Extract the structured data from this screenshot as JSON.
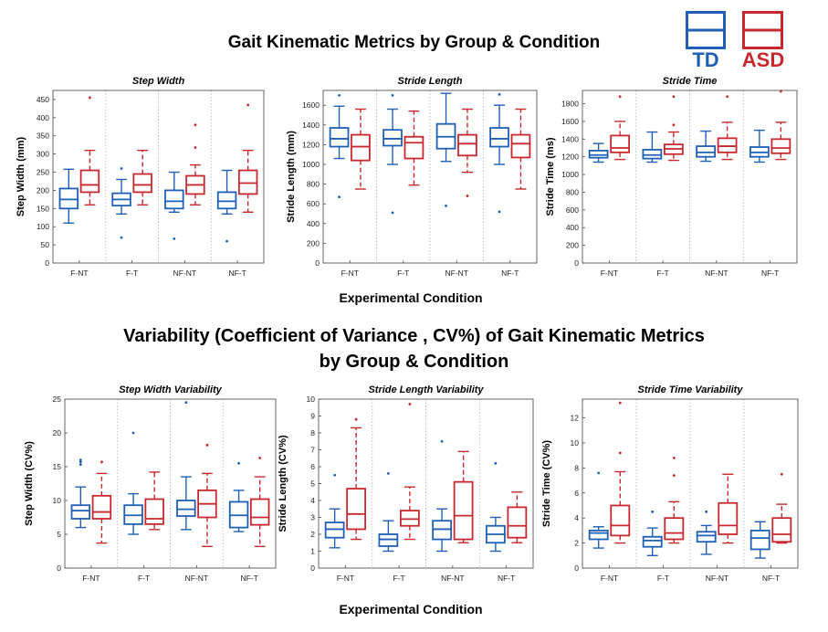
{
  "main_title": "Gait Kinematic Metrics by Group & Condition",
  "var_title_line1": "Variability (Coefficient of Variance , CV%) of Gait Kinematic Metrics",
  "var_title_line2": "by Group & Condition",
  "xlabel_top": "Experimental Condition",
  "xlabel_bottom": "Experimental Condition",
  "legend": [
    {
      "label": "TD",
      "color": "#1f5fb5"
    },
    {
      "label": "ASD",
      "color": "#c8282d"
    }
  ],
  "chart_data": [
    {
      "type": "box",
      "title": "Step Width",
      "ylabel": "Step Width (mm)",
      "categories": [
        "F-NT",
        "F-T",
        "NF-NT",
        "NF-T"
      ],
      "ylim": [
        0,
        475
      ],
      "yticks": [
        0,
        50,
        100,
        150,
        200,
        250,
        300,
        350,
        400,
        450
      ],
      "series": [
        {
          "name": "TD",
          "boxes": [
            {
              "min": 110,
              "q1": 150,
              "median": 175,
              "q3": 205,
              "max": 258,
              "outliers": []
            },
            {
              "min": 135,
              "q1": 158,
              "median": 175,
              "q3": 192,
              "max": 230,
              "outliers": [
                260,
                70
              ]
            },
            {
              "min": 140,
              "q1": 150,
              "median": 170,
              "q3": 200,
              "max": 250,
              "outliers": [
                67
              ]
            },
            {
              "min": 135,
              "q1": 150,
              "median": 170,
              "q3": 195,
              "max": 255,
              "outliers": [
                60
              ]
            }
          ]
        },
        {
          "name": "ASD",
          "boxes": [
            {
              "min": 160,
              "q1": 195,
              "median": 215,
              "q3": 255,
              "max": 310,
              "outliers": [
                455
              ]
            },
            {
              "min": 160,
              "q1": 195,
              "median": 215,
              "q3": 245,
              "max": 310,
              "outliers": []
            },
            {
              "min": 160,
              "q1": 190,
              "median": 215,
              "q3": 240,
              "max": 270,
              "outliers": [
                380,
                318
              ]
            },
            {
              "min": 140,
              "q1": 190,
              "median": 220,
              "q3": 255,
              "max": 310,
              "outliers": [
                435
              ]
            }
          ]
        }
      ]
    },
    {
      "type": "box",
      "title": "Stride Length",
      "ylabel": "Stride Length (mm)",
      "categories": [
        "F-NT",
        "F-T",
        "NF-NT",
        "NF-T"
      ],
      "ylim": [
        0,
        1750
      ],
      "yticks": [
        0,
        200,
        400,
        600,
        800,
        1000,
        1200,
        1400,
        1600
      ],
      "series": [
        {
          "name": "TD",
          "boxes": [
            {
              "min": 1060,
              "q1": 1180,
              "median": 1260,
              "q3": 1370,
              "max": 1590,
              "outliers": [
                1700,
                670
              ]
            },
            {
              "min": 1000,
              "q1": 1190,
              "median": 1260,
              "q3": 1350,
              "max": 1560,
              "outliers": [
                1700,
                510
              ]
            },
            {
              "min": 1030,
              "q1": 1160,
              "median": 1280,
              "q3": 1410,
              "max": 1720,
              "outliers": [
                580
              ]
            },
            {
              "min": 1000,
              "q1": 1180,
              "median": 1260,
              "q3": 1370,
              "max": 1600,
              "outliers": [
                1710,
                520
              ]
            }
          ]
        },
        {
          "name": "ASD",
          "boxes": [
            {
              "min": 750,
              "q1": 1040,
              "median": 1180,
              "q3": 1300,
              "max": 1560,
              "outliers": []
            },
            {
              "min": 790,
              "q1": 1060,
              "median": 1220,
              "q3": 1280,
              "max": 1540,
              "outliers": []
            },
            {
              "min": 920,
              "q1": 1090,
              "median": 1210,
              "q3": 1300,
              "max": 1560,
              "outliers": [
                680
              ]
            },
            {
              "min": 750,
              "q1": 1070,
              "median": 1210,
              "q3": 1300,
              "max": 1560,
              "outliers": []
            }
          ]
        }
      ]
    },
    {
      "type": "box",
      "title": "Stride Time",
      "ylabel": "Stride Time (ms)",
      "categories": [
        "F-NT",
        "F-T",
        "NF-NT",
        "NF-T"
      ],
      "ylim": [
        0,
        1950
      ],
      "yticks": [
        0,
        200,
        400,
        600,
        800,
        1000,
        1200,
        1400,
        1600,
        1800
      ],
      "series": [
        {
          "name": "TD",
          "boxes": [
            {
              "min": 1140,
              "q1": 1190,
              "median": 1220,
              "q3": 1270,
              "max": 1350,
              "outliers": []
            },
            {
              "min": 1140,
              "q1": 1180,
              "median": 1220,
              "q3": 1280,
              "max": 1480,
              "outliers": []
            },
            {
              "min": 1150,
              "q1": 1200,
              "median": 1250,
              "q3": 1320,
              "max": 1490,
              "outliers": []
            },
            {
              "min": 1140,
              "q1": 1200,
              "median": 1250,
              "q3": 1310,
              "max": 1500,
              "outliers": []
            }
          ]
        },
        {
          "name": "ASD",
          "boxes": [
            {
              "min": 1170,
              "q1": 1250,
              "median": 1300,
              "q3": 1440,
              "max": 1600,
              "outliers": [
                1880
              ]
            },
            {
              "min": 1160,
              "q1": 1230,
              "median": 1290,
              "q3": 1340,
              "max": 1480,
              "outliers": [
                1880,
                1560
              ]
            },
            {
              "min": 1170,
              "q1": 1250,
              "median": 1320,
              "q3": 1410,
              "max": 1590,
              "outliers": [
                1880
              ]
            },
            {
              "min": 1170,
              "q1": 1240,
              "median": 1300,
              "q3": 1400,
              "max": 1590,
              "outliers": [
                1940
              ]
            }
          ]
        }
      ]
    },
    {
      "type": "box",
      "title": "Step Width Variability",
      "ylabel": "Step Width (CV%)",
      "categories": [
        "F-NT",
        "F-T",
        "NF-NT",
        "NF-T"
      ],
      "ylim": [
        0,
        25
      ],
      "yticks": [
        0,
        5,
        10,
        15,
        20,
        25
      ],
      "series": [
        {
          "name": "TD",
          "boxes": [
            {
              "min": 6,
              "q1": 7.3,
              "median": 8.5,
              "q3": 9.3,
              "max": 12,
              "outliers": [
                16,
                15.7,
                15.3
              ]
            },
            {
              "min": 5,
              "q1": 6.5,
              "median": 7.8,
              "q3": 9.3,
              "max": 11,
              "outliers": [
                20
              ]
            },
            {
              "min": 5.7,
              "q1": 7.7,
              "median": 8.7,
              "q3": 10,
              "max": 13.5,
              "outliers": [
                24.5
              ]
            },
            {
              "min": 5.4,
              "q1": 6,
              "median": 7.8,
              "q3": 9.8,
              "max": 11.5,
              "outliers": [
                15.5
              ]
            }
          ]
        },
        {
          "name": "ASD",
          "boxes": [
            {
              "min": 3.7,
              "q1": 7.3,
              "median": 8.3,
              "q3": 10.7,
              "max": 14,
              "outliers": [
                15.7
              ]
            },
            {
              "min": 5.7,
              "q1": 6.5,
              "median": 7.3,
              "q3": 10.2,
              "max": 14.2,
              "outliers": []
            },
            {
              "min": 3.2,
              "q1": 7.5,
              "median": 9.5,
              "q3": 11.5,
              "max": 14,
              "outliers": [
                18.2
              ]
            },
            {
              "min": 3.2,
              "q1": 6.4,
              "median": 7.5,
              "q3": 10.2,
              "max": 13.5,
              "outliers": [
                16.3
              ]
            }
          ]
        }
      ]
    },
    {
      "type": "box",
      "title": "Stride Length Variability",
      "ylabel": "Stride Length (CV%)",
      "categories": [
        "F-NT",
        "F-T",
        "NF-NT",
        "NF-T"
      ],
      "ylim": [
        0,
        10
      ],
      "yticks": [
        0,
        1,
        2,
        3,
        4,
        5,
        6,
        7,
        8,
        9,
        10
      ],
      "series": [
        {
          "name": "TD",
          "boxes": [
            {
              "min": 1.2,
              "q1": 1.8,
              "median": 2.3,
              "q3": 2.7,
              "max": 3.5,
              "outliers": [
                5.5
              ]
            },
            {
              "min": 1,
              "q1": 1.3,
              "median": 1.7,
              "q3": 2,
              "max": 2.8,
              "outliers": [
                5.6
              ]
            },
            {
              "min": 1,
              "q1": 1.7,
              "median": 2.3,
              "q3": 2.8,
              "max": 3.5,
              "outliers": [
                7.5
              ]
            },
            {
              "min": 1,
              "q1": 1.5,
              "median": 2,
              "q3": 2.5,
              "max": 3,
              "outliers": [
                6.2
              ]
            }
          ]
        },
        {
          "name": "ASD",
          "boxes": [
            {
              "min": 1.7,
              "q1": 2.3,
              "median": 3.2,
              "q3": 4.7,
              "max": 8.3,
              "outliers": [
                8.8
              ]
            },
            {
              "min": 1.7,
              "q1": 2.5,
              "median": 2.9,
              "q3": 3.4,
              "max": 4.8,
              "outliers": [
                9.7
              ]
            },
            {
              "min": 1.5,
              "q1": 1.7,
              "median": 3.1,
              "q3": 5.1,
              "max": 6.9,
              "outliers": []
            },
            {
              "min": 1.5,
              "q1": 1.8,
              "median": 2.5,
              "q3": 3.6,
              "max": 4.5,
              "outliers": []
            }
          ]
        }
      ]
    },
    {
      "type": "box",
      "title": "Stride Time Variability",
      "ylabel": "Stride Time (CV%)",
      "categories": [
        "F-NT",
        "F-T",
        "NF-NT",
        "NF-T"
      ],
      "ylim": [
        0,
        13.5
      ],
      "yticks": [
        0,
        2,
        4,
        6,
        8,
        10,
        12
      ],
      "series": [
        {
          "name": "TD",
          "boxes": [
            {
              "min": 1.6,
              "q1": 2.3,
              "median": 2.8,
              "q3": 3,
              "max": 3.3,
              "outliers": [
                7.6
              ]
            },
            {
              "min": 1,
              "q1": 1.7,
              "median": 2.2,
              "q3": 2.5,
              "max": 3.2,
              "outliers": [
                4.5
              ]
            },
            {
              "min": 1.1,
              "q1": 2.1,
              "median": 2.6,
              "q3": 2.9,
              "max": 3.4,
              "outliers": [
                4.5
              ]
            },
            {
              "min": 0.8,
              "q1": 1.5,
              "median": 2.4,
              "q3": 3,
              "max": 3.7,
              "outliers": []
            }
          ]
        },
        {
          "name": "ASD",
          "boxes": [
            {
              "min": 2,
              "q1": 2.6,
              "median": 3.4,
              "q3": 5,
              "max": 7.7,
              "outliers": [
                13.2,
                9.2
              ]
            },
            {
              "min": 2,
              "q1": 2.3,
              "median": 2.8,
              "q3": 4,
              "max": 5.3,
              "outliers": [
                8.8,
                7.4
              ]
            },
            {
              "min": 2,
              "q1": 2.7,
              "median": 3.4,
              "q3": 5.2,
              "max": 7.5,
              "outliers": []
            },
            {
              "min": 2,
              "q1": 2.1,
              "median": 2.7,
              "q3": 4,
              "max": 5.1,
              "outliers": [
                7.5
              ]
            }
          ]
        }
      ]
    }
  ]
}
